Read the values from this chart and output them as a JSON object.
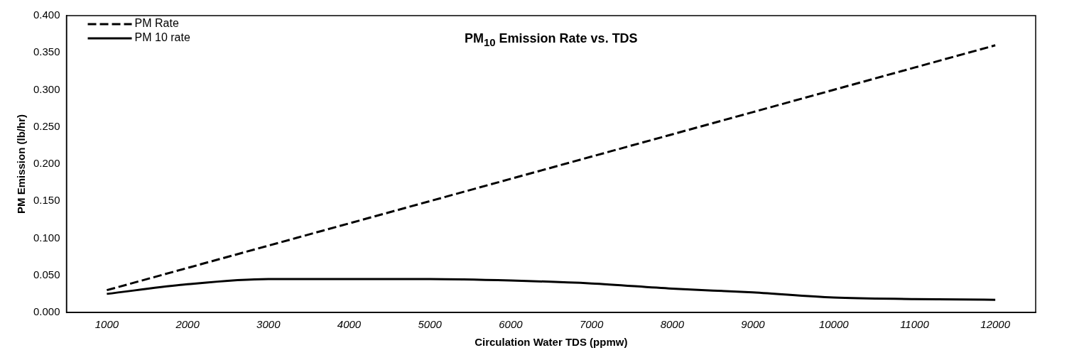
{
  "chart_data": {
    "type": "line",
    "title": "PM$_{10}$ Emission Rate vs. TDS",
    "xlabel": "Circulation Water TDS (ppmw)",
    "ylabel": "PM Emission (lb/hr)",
    "categories": [
      "1000",
      "2000",
      "3000",
      "4000",
      "5000",
      "6000",
      "7000",
      "8000",
      "9000",
      "10000",
      "11000",
      "12000"
    ],
    "series": [
      {
        "name": "PM Rate",
        "color": "#000000",
        "line_style": "dashed",
        "values": [
          0.03,
          0.06,
          0.09,
          0.12,
          0.15,
          0.18,
          0.21,
          0.24,
          0.27,
          0.3,
          0.33,
          0.36
        ]
      },
      {
        "name": "PM 10 rate",
        "color": "#000000",
        "line_style": "solid",
        "values": [
          0.025,
          0.038,
          0.045,
          0.045,
          0.045,
          0.043,
          0.039,
          0.032,
          0.027,
          0.02,
          0.018,
          0.017
        ]
      }
    ],
    "ylim": [
      0,
      0.4
    ],
    "yticks": [
      {
        "value": 0,
        "label": "0.000"
      },
      {
        "value": 0.05,
        "label": "0.050"
      },
      {
        "value": 0.1,
        "label": "0.100"
      },
      {
        "value": 0.15,
        "label": "0.150"
      },
      {
        "value": 0.2,
        "label": "0.200"
      },
      {
        "value": 0.25,
        "label": "0.250"
      },
      {
        "value": 0.3,
        "label": "0.300"
      },
      {
        "value": 0.35,
        "label": "0.350"
      },
      {
        "value": 0.4,
        "label": "0.400"
      }
    ],
    "grid": false,
    "legend": "top left",
    "marker": "none"
  }
}
